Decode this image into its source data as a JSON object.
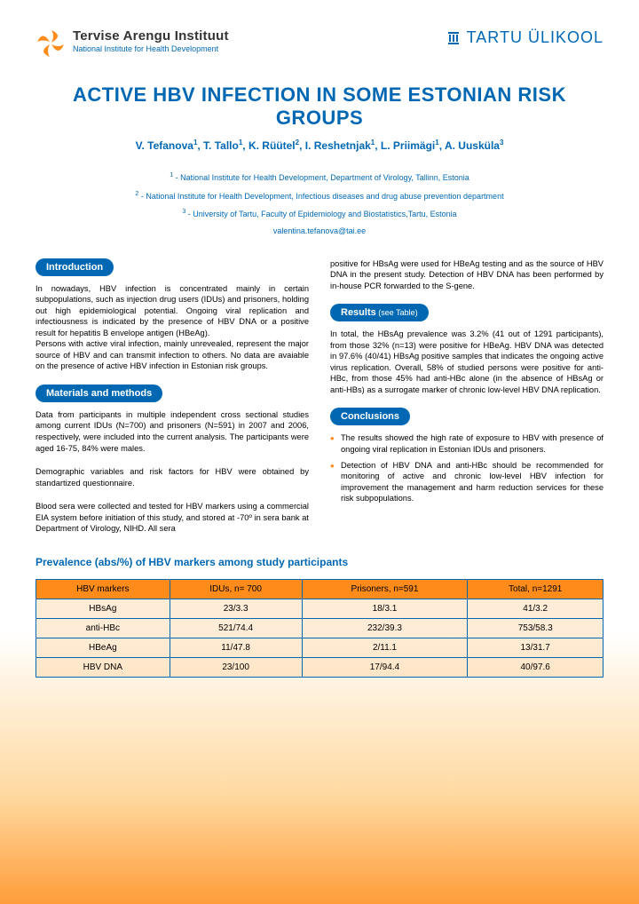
{
  "logo_left": {
    "line1": "Tervise Arengu Instituut",
    "line2": "National Institute for Health Development"
  },
  "logo_right": "TARTU ÜLIKOOL",
  "title": "ACTIVE HBV INFECTION IN SOME ESTONIAN RISK GROUPS",
  "authors_html": "V. Tefanova<sup>1</sup>, T. Tallo<sup>1</sup>, K. Rüütel<sup>2</sup>, I. Reshetnjak<sup>1</sup>, L. Priimägi<sup>1</sup>, A. Uusküla<sup>3</sup>",
  "affiliations": [
    "<sup>1</sup> - National Institute for Health Development, Department of Virology, Tallinn, Estonia",
    "<sup>2</sup> - National Institute for Health Development, Infectious diseases and drug abuse prevention department",
    "<sup>3</sup> - University of Tartu, Faculty of Epidemiology and Biostatistics,Tartu, Estonia"
  ],
  "email": "valentina.tefanova@tai.ee",
  "sections": {
    "intro": {
      "heading": "Introduction",
      "p1": "In nowadays, HBV infection is concentrated mainly in certain subpopulations, such as injection drug users (IDUs) and prisoners, holding out high epidemiological potential. Ongoing viral replication and infectiousness is indicated by the presence of HBV DNA or a positive result for hepatitis B envelope antigen (HBeAg).",
      "p2": "Persons with active viral infection, mainly unrevealed, represent the major source of HBV and can transmit infection to others. No data are avaiable on the presence of active HBV infection in Estonian risk groups."
    },
    "methods": {
      "heading": "Materials and methods",
      "p1": "Data from participants in multiple independent cross sectional studies among current IDUs (N=700) and prisoners (N=591) in 2007 and 2006, respectively, were included into the current analysis. The participants were aged 16-75, 84% were males.",
      "p2": "Demographic variables and risk factors for HBV were obtained by standartized questionnaire.",
      "p3": "Blood sera were collected and tested for HBV markers using a commercial EIA system before initiation of this study, and stored at -70º in sera bank at Department of Virology, NIHD. All sera",
      "p_cont": "positive for HBsAg were used for HBeAg testing and as the source of HBV DNA in the present study. Detection of HBV DNA has been performed by in-house PCR forwarded to the S-gene."
    },
    "results": {
      "heading": "Results",
      "sub": " (see Table)",
      "p1": "In total, the HBsAg prevalence was 3.2% (41 out of 1291 participants), from those 32%  (n=13) were positive for HBeAg. HBV DNA was detected in 97.6% (40/41) HBsAg positive samples that indicates the ongoing active virus replication. Overall, 58% of studied persons were positive for anti-HBc, from those 45% had anti-HBc alone (in the absence of HBsAg or anti-HBs) as a surrogate marker of  chronic low-level HBV DNA replication."
    },
    "conclusions": {
      "heading": "Conclusions",
      "b1": "The results showed the high rate of exposure to HBV with presence of ongoing viral replication in Estonian IDUs and prisoners.",
      "b2": "Detection of HBV DNA and anti-HBc should be recommended for monitoring of active and chronic low-level HBV infection for improvement the management and harm reduction services for these risk subpopulations."
    }
  },
  "table": {
    "title": "Prevalence (abs/%) of HBV markers among study participants",
    "columns": [
      "HBV markers",
      "IDUs, n= 700",
      "Prisoners, n=591",
      "Total, n=1291"
    ],
    "rows": [
      [
        "HBsAg",
        "23/3.3",
        "18/3.1",
        "41/3.2"
      ],
      [
        "anti-HBc",
        "521/74.4",
        "232/39.3",
        "753/58.3"
      ],
      [
        "HBeAg",
        "11/47.8",
        "2/11.1",
        "13/31.7"
      ],
      [
        "HBV DNA",
        "23/100",
        "17/94.4",
        "40/97.6"
      ]
    ],
    "header_bg": "#ff8c1a",
    "border_color": "#0068b3"
  },
  "colors": {
    "primary": "#0068b3",
    "accent": "#ff8c1a"
  }
}
